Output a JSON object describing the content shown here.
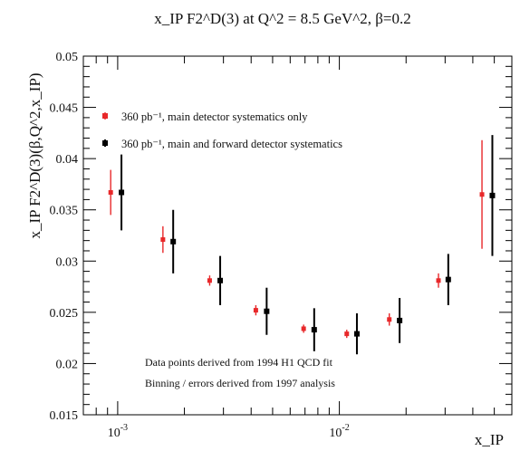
{
  "chart_data": {
    "type": "scatter",
    "title": "x_IP F2^D(3) at Q^2 = 8.5 GeV^2, β=0.2",
    "xlabel": "x_IP",
    "ylabel": "x_IP F2^D(3)(β,Q^2,x_IP)",
    "xscale": "log",
    "xlim": [
      0.0007,
      0.06
    ],
    "ylim": [
      0.015,
      0.05
    ],
    "yticks": [
      "0.015",
      "0.02",
      "0.025",
      "0.03",
      "0.035",
      "0.04",
      "0.045",
      "0.05"
    ],
    "xticks": [
      {
        "value": 0.001,
        "base": "10",
        "exp": "-3"
      },
      {
        "value": 0.01,
        "base": "10",
        "exp": "-2"
      }
    ],
    "legend_position": "top-left",
    "series": [
      {
        "name": "360 pb⁻¹, main detector systematics only",
        "color": "#e8282a",
        "x": [
          0.00093,
          0.0016,
          0.0026,
          0.0042,
          0.0069,
          0.0108,
          0.0168,
          0.028,
          0.044
        ],
        "y": [
          0.0367,
          0.0321,
          0.0281,
          0.0252,
          0.0234,
          0.0229,
          0.0243,
          0.0281,
          0.0365
        ],
        "err": [
          0.0022,
          0.0013,
          0.0005,
          0.0005,
          0.0004,
          0.0004,
          0.0006,
          0.0007,
          0.0053
        ]
      },
      {
        "name": "360 pb⁻¹, main and forward detector systematics",
        "color": "#000000",
        "x": [
          0.00104,
          0.00178,
          0.0029,
          0.0047,
          0.0077,
          0.012,
          0.0187,
          0.031,
          0.049
        ],
        "y": [
          0.0367,
          0.0319,
          0.0281,
          0.0251,
          0.0233,
          0.0229,
          0.0242,
          0.0282,
          0.0364
        ],
        "err": [
          0.0037,
          0.0031,
          0.0024,
          0.0023,
          0.0021,
          0.002,
          0.0022,
          0.0025,
          0.0059
        ]
      }
    ],
    "annotations": [
      "Data points derived from 1994 H1 QCD fit",
      "Binning / errors derived from 1997 analysis"
    ]
  }
}
